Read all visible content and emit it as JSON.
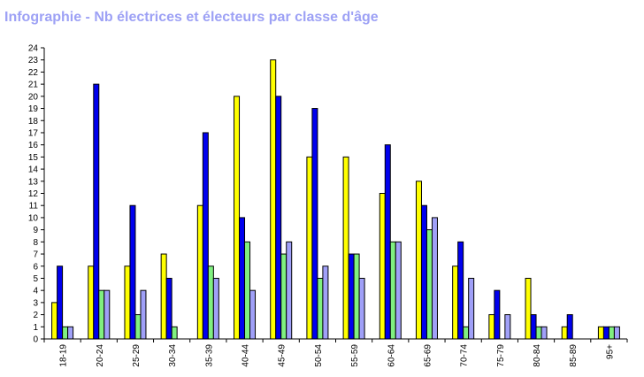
{
  "chart_data": {
    "type": "bar",
    "title": "Infographie - Nb électrices et électeurs par classe d'âge",
    "categories": [
      "18-19",
      "20-24",
      "25-29",
      "30-34",
      "35-39",
      "40-44",
      "45-49",
      "50-54",
      "55-59",
      "60-64",
      "65-69",
      "70-74",
      "75-79",
      "80-84",
      "85-89",
      "95+"
    ],
    "series": [
      {
        "color": "#ffff00",
        "values": [
          3,
          6,
          6,
          7,
          11,
          20,
          23,
          15,
          15,
          12,
          13,
          6,
          2,
          5,
          1,
          1
        ]
      },
      {
        "color": "#0000ee",
        "values": [
          6,
          21,
          11,
          5,
          17,
          10,
          20,
          19,
          7,
          16,
          11,
          8,
          4,
          2,
          2,
          1
        ]
      },
      {
        "color": "#80f080",
        "values": [
          1,
          4,
          2,
          1,
          6,
          8,
          7,
          5,
          7,
          8,
          9,
          1,
          0,
          1,
          0,
          1
        ]
      },
      {
        "color": "#a0a0f8",
        "values": [
          1,
          4,
          4,
          0,
          5,
          4,
          8,
          6,
          5,
          8,
          10,
          5,
          2,
          1,
          0,
          1
        ]
      }
    ],
    "ylim": [
      0,
      24
    ],
    "yticks": [
      "0",
      "1",
      "2",
      "3",
      "4",
      "5",
      "6",
      "7",
      "8",
      "9",
      "10",
      "11",
      "12",
      "13",
      "14",
      "15",
      "16",
      "17",
      "18",
      "19",
      "20",
      "21",
      "22",
      "23",
      "24"
    ],
    "grid": false,
    "legend": "none"
  }
}
